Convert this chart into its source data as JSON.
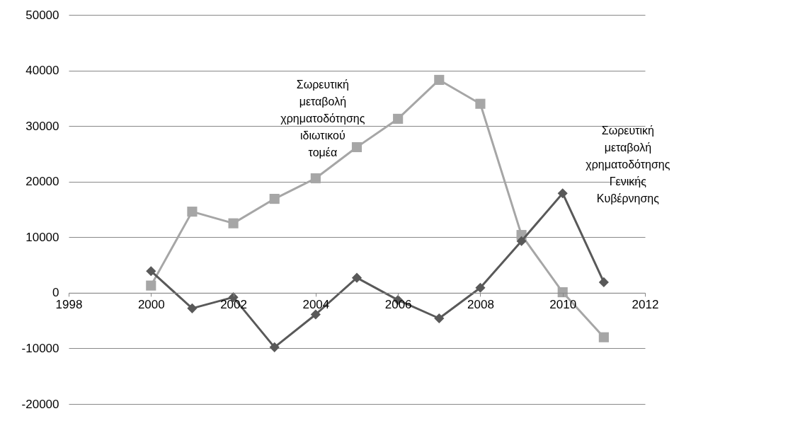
{
  "chart_data": {
    "type": "line",
    "x": [
      2000,
      2001,
      2002,
      2003,
      2004,
      2005,
      2006,
      2007,
      2008,
      2009,
      2010,
      2011
    ],
    "series": [
      {
        "name": "Σωρευτική μεταβολή χρηματοδότησης ιδιωτικού τομέα",
        "color": "#a6a6a6",
        "marker": "square",
        "values": [
          1300,
          14600,
          12500,
          16900,
          20600,
          26200,
          31300,
          38300,
          34000,
          10400,
          100,
          -8000
        ]
      },
      {
        "name": "Σωρευτική μεταβολή χρηματοδότησης Γενικής Κυβέρνησης",
        "color": "#595959",
        "marker": "diamond",
        "values": [
          3900,
          -2800,
          -800,
          -9800,
          -3900,
          2700,
          -1300,
          -4600,
          900,
          9300,
          17900,
          1900
        ]
      }
    ],
    "xlim": [
      1998,
      2012
    ],
    "xticks": [
      1998,
      2000,
      2002,
      2004,
      2006,
      2008,
      2010,
      2012
    ],
    "ylim": [
      -20000,
      50000
    ],
    "yticks": [
      -20000,
      -10000,
      0,
      10000,
      20000,
      30000,
      40000,
      50000
    ],
    "grid": "y",
    "legend": false
  }
}
